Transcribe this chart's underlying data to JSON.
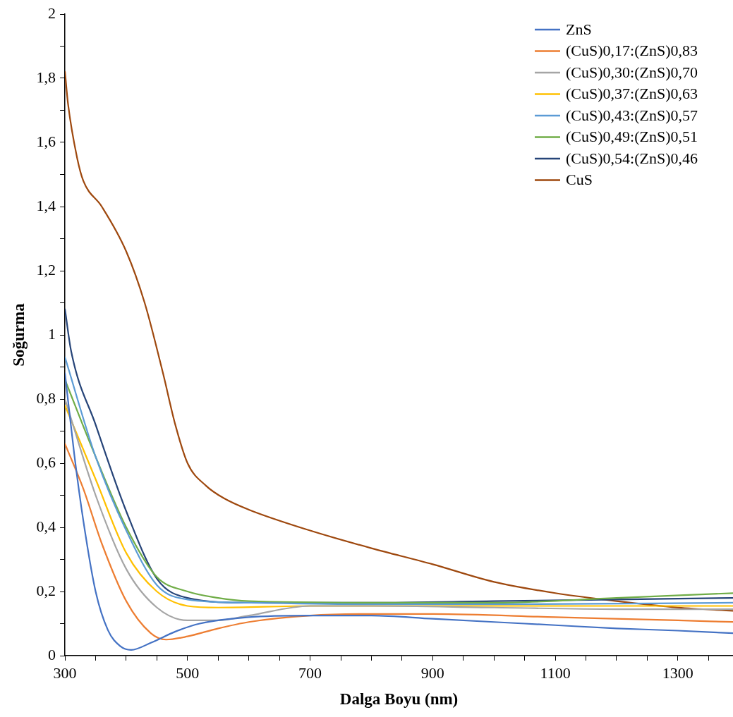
{
  "chart_data": {
    "type": "line",
    "xlabel": "Dalga Boyu (nm)",
    "ylabel": "Soğurma",
    "xlim": [
      300,
      1390
    ],
    "ylim": [
      0,
      2
    ],
    "xticks": [
      300,
      {
        "value": 350,
        "label": null
      },
      500,
      {
        "value": 450,
        "label": null
      },
      {
        "value": 400,
        "label": null
      },
      {
        "value": 550,
        "label": null
      },
      {
        "value": 600,
        "label": null
      },
      {
        "value": 650,
        "label": null
      },
      700,
      {
        "value": 750,
        "label": null
      },
      {
        "value": 800,
        "label": null
      },
      {
        "value": 850,
        "label": null
      },
      900,
      {
        "value": 950,
        "label": null
      },
      {
        "value": 1000,
        "label": null
      },
      {
        "value": 1050,
        "label": null
      },
      1100,
      {
        "value": 1150,
        "label": null
      },
      {
        "value": 1200,
        "label": null
      },
      {
        "value": 1250,
        "label": null
      },
      1300,
      {
        "value": 1350,
        "label": null
      }
    ],
    "yticks": [
      0,
      {
        "value": 0.1,
        "label": null
      },
      {
        "value": 0.2,
        "label": "0,2"
      },
      {
        "value": 0.3,
        "label": null
      },
      {
        "value": 0.4,
        "label": "0,4"
      },
      {
        "value": 0.5,
        "label": null
      },
      {
        "value": 0.6,
        "label": "0,6"
      },
      {
        "value": 0.7,
        "label": null
      },
      {
        "value": 0.8,
        "label": "0,8"
      },
      {
        "value": 0.9,
        "label": null
      },
      1,
      {
        "value": 1.1,
        "label": null
      },
      {
        "value": 1.2,
        "label": "1,2"
      },
      {
        "value": 1.3,
        "label": null
      },
      {
        "value": 1.4,
        "label": "1,4"
      },
      {
        "value": 1.5,
        "label": null
      },
      {
        "value": 1.6,
        "label": "1,6"
      },
      {
        "value": 1.7,
        "label": null
      },
      {
        "value": 1.8,
        "label": "1,8"
      },
      {
        "value": 1.9,
        "label": null
      },
      2
    ],
    "grid": false,
    "legend": "top right",
    "marker": "none",
    "line_style": "solid",
    "series": [
      {
        "name": "ZnS",
        "color": "#4472c4",
        "x": [
          300,
          315,
          330,
          350,
          370,
          390,
          408,
          440,
          480,
          520,
          600,
          700,
          800,
          900,
          1000,
          1100,
          1200,
          1300,
          1390
        ],
        "values": [
          0.88,
          0.63,
          0.42,
          0.2,
          0.08,
          0.03,
          0.018,
          0.04,
          0.075,
          0.1,
          0.12,
          0.125,
          0.125,
          0.115,
          0.105,
          0.095,
          0.085,
          0.078,
          0.07
        ]
      },
      {
        "name": "(CuS)0,17:(ZnS)0,83",
        "color": "#ed7d31",
        "x": [
          300,
          330,
          360,
          400,
          440,
          465,
          500,
          550,
          600,
          700,
          800,
          900,
          1100,
          1300,
          1390
        ],
        "values": [
          0.66,
          0.52,
          0.35,
          0.17,
          0.07,
          0.05,
          0.06,
          0.085,
          0.105,
          0.125,
          0.13,
          0.13,
          0.12,
          0.11,
          0.105
        ]
      },
      {
        "name": "(CuS)0,30:(ZnS)0,70",
        "color": "#a5a5a5",
        "x": [
          300,
          350,
          400,
          450,
          500,
          550,
          600,
          700,
          800,
          1000,
          1200,
          1390
        ],
        "values": [
          0.8,
          0.5,
          0.27,
          0.15,
          0.11,
          0.11,
          0.125,
          0.155,
          0.155,
          0.15,
          0.145,
          0.145
        ]
      },
      {
        "name": "(CuS)0,37:(ZnS)0,63",
        "color": "#ffc000",
        "x": [
          300,
          350,
          400,
          450,
          500,
          550,
          700,
          900,
          1100,
          1390
        ],
        "values": [
          0.78,
          0.55,
          0.32,
          0.2,
          0.155,
          0.15,
          0.155,
          0.155,
          0.155,
          0.155
        ]
      },
      {
        "name": "(CuS)0,43:(ZnS)0,57",
        "color": "#5b9bd5",
        "x": [
          300,
          350,
          400,
          450,
          500,
          600,
          800,
          1000,
          1390
        ],
        "values": [
          0.93,
          0.62,
          0.39,
          0.22,
          0.175,
          0.165,
          0.16,
          0.16,
          0.165
        ]
      },
      {
        "name": "(CuS)0,49:(ZnS)0,51",
        "color": "#70ad47",
        "x": [
          300,
          350,
          400,
          450,
          500,
          550,
          600,
          800,
          1000,
          1200,
          1390
        ],
        "values": [
          0.86,
          0.62,
          0.4,
          0.245,
          0.2,
          0.18,
          0.17,
          0.165,
          0.165,
          0.18,
          0.195
        ]
      },
      {
        "name": "(CuS)0,54:(ZnS)0,46",
        "color": "#264478",
        "x": [
          300,
          310,
          350,
          400,
          450,
          500,
          600,
          800,
          1000,
          1200,
          1390
        ],
        "values": [
          1.08,
          0.95,
          0.72,
          0.45,
          0.24,
          0.18,
          0.165,
          0.165,
          0.17,
          0.175,
          0.18
        ]
      },
      {
        "name": "CuS",
        "color": "#9e480e",
        "x": [
          300,
          305,
          320,
          330,
          360,
          400,
          430,
          460,
          480,
          500,
          530,
          560,
          600,
          700,
          800,
          900,
          1000,
          1100,
          1200,
          1300,
          1390
        ],
        "values": [
          1.82,
          1.72,
          1.55,
          1.48,
          1.4,
          1.26,
          1.1,
          0.88,
          0.72,
          0.6,
          0.53,
          0.49,
          0.455,
          0.39,
          0.335,
          0.285,
          0.23,
          0.195,
          0.17,
          0.15,
          0.14
        ]
      }
    ]
  }
}
